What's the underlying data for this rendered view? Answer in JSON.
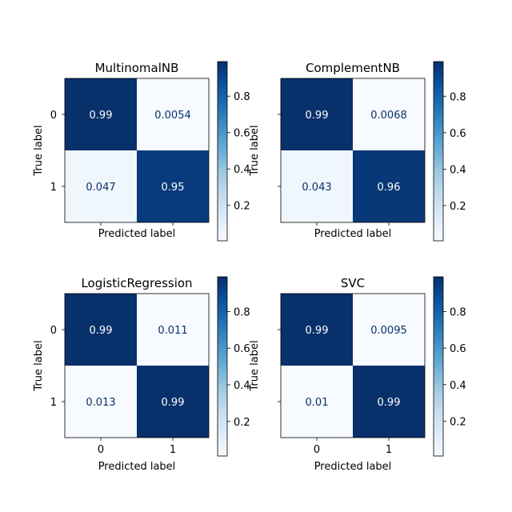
{
  "chart_data": [
    {
      "type": "heatmap",
      "title": "MultinomalNB",
      "xlabel": "Predicted label",
      "ylabel": "True label",
      "row_labels": [
        "0",
        "1"
      ],
      "col_labels": [],
      "values": [
        [
          0.99,
          0.0054
        ],
        [
          0.047,
          0.95
        ]
      ],
      "value_labels": [
        [
          "0.99",
          "0.0054"
        ],
        [
          "0.047",
          "0.95"
        ]
      ],
      "colorbar": {
        "range": [
          0.0054,
          0.99
        ],
        "ticks": [
          "0.2",
          "0.4",
          "0.6",
          "0.8"
        ],
        "tick_values": [
          0.2,
          0.4,
          0.6,
          0.8
        ]
      }
    },
    {
      "type": "heatmap",
      "title": "ComplementNB",
      "xlabel": "Predicted label",
      "ylabel": "True label",
      "row_labels": [],
      "col_labels": [],
      "values": [
        [
          0.99,
          0.0068
        ],
        [
          0.043,
          0.96
        ]
      ],
      "value_labels": [
        [
          "0.99",
          "0.0068"
        ],
        [
          "0.043",
          "0.96"
        ]
      ],
      "colorbar": {
        "range": [
          0.0068,
          0.99
        ],
        "ticks": [
          "0.2",
          "0.4",
          "0.6",
          "0.8"
        ],
        "tick_values": [
          0.2,
          0.4,
          0.6,
          0.8
        ]
      }
    },
    {
      "type": "heatmap",
      "title": "LogisticRegression",
      "xlabel": "Predicted label",
      "ylabel": "True label",
      "row_labels": [
        "0",
        "1"
      ],
      "col_labels": [
        "0",
        "1"
      ],
      "values": [
        [
          0.99,
          0.011
        ],
        [
          0.013,
          0.99
        ]
      ],
      "value_labels": [
        [
          "0.99",
          "0.011"
        ],
        [
          "0.013",
          "0.99"
        ]
      ],
      "colorbar": {
        "range": [
          0.011,
          0.99
        ],
        "ticks": [
          "0.2",
          "0.4",
          "0.6",
          "0.8"
        ],
        "tick_values": [
          0.2,
          0.4,
          0.6,
          0.8
        ]
      }
    },
    {
      "type": "heatmap",
      "title": "SVC",
      "xlabel": "Predicted label",
      "ylabel": "True label",
      "row_labels": [],
      "col_labels": [
        "0",
        "1"
      ],
      "values": [
        [
          0.99,
          0.0095
        ],
        [
          0.01,
          0.99
        ]
      ],
      "value_labels": [
        [
          "0.99",
          "0.0095"
        ],
        [
          "0.01",
          "0.99"
        ]
      ],
      "colorbar": {
        "range": [
          0.0095,
          0.99
        ],
        "ticks": [
          "0.2",
          "0.4",
          "0.6",
          "0.8"
        ],
        "tick_values": [
          0.2,
          0.4,
          0.6,
          0.8
        ]
      }
    }
  ],
  "colormap": [
    "#f7fbff",
    "#deebf7",
    "#c6dbef",
    "#9ecae1",
    "#6baed6",
    "#4292c6",
    "#2171b5",
    "#08519c",
    "#08306b"
  ],
  "text_colors": {
    "light": "#ffffff",
    "dark": "#08306b"
  }
}
